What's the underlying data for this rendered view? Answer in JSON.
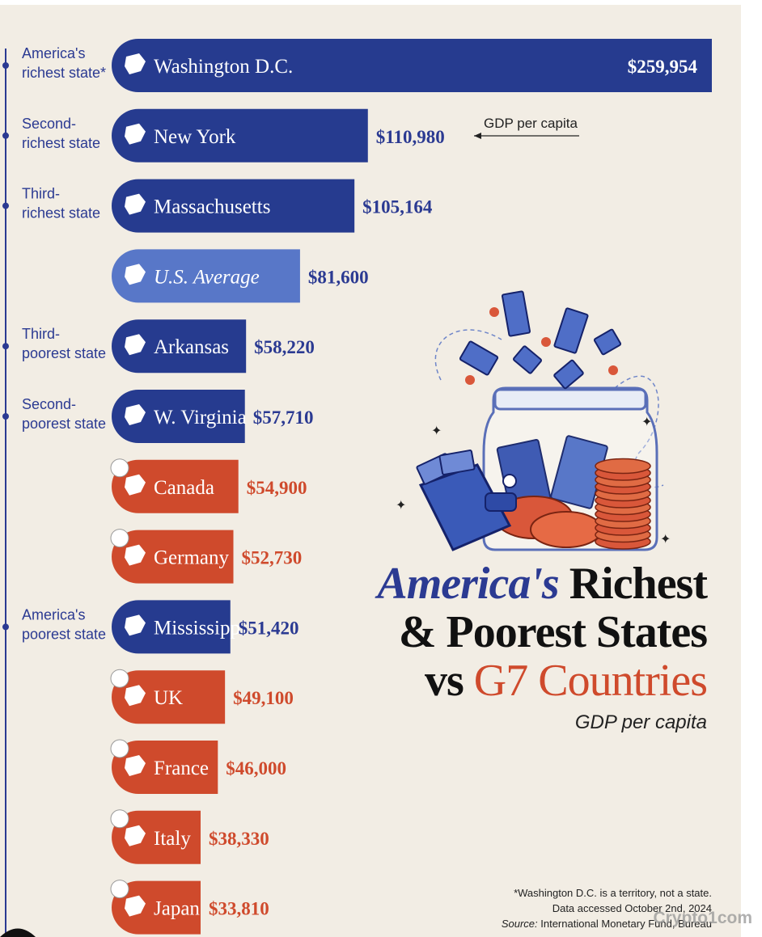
{
  "chart_data": {
    "type": "bar",
    "orientation": "horizontal",
    "title": "America's Richest & Poorest States vs G7 Countries",
    "title_parts": {
      "accent": "America's",
      "line1_rest": "Richest",
      "line2": "& Poorest States",
      "line3_prefix": "vs",
      "line3_accent": "G7 Countries"
    },
    "subtitle": "GDP per capita",
    "annotation": "GDP per capita",
    "unit": "USD",
    "xlim": [
      0,
      260000
    ],
    "bars": [
      {
        "label": "Washington D.C.",
        "value": 259954,
        "value_label": "$259,954",
        "group": "state",
        "side_label": "America's richest state*",
        "side_label_lines": [
          "America's",
          "richest state*"
        ]
      },
      {
        "label": "New York",
        "value": 110980,
        "value_label": "$110,980",
        "group": "state",
        "side_label": "Second-richest state",
        "side_label_lines": [
          "Second-",
          "richest state"
        ]
      },
      {
        "label": "Massachusetts",
        "value": 105164,
        "value_label": "$105,164",
        "group": "state",
        "side_label": "Third-richest state",
        "side_label_lines": [
          "Third-",
          "richest state"
        ]
      },
      {
        "label": "U.S. Average",
        "value": 81600,
        "value_label": "$81,600",
        "group": "average",
        "side_label": "",
        "side_label_lines": []
      },
      {
        "label": "Arkansas",
        "value": 58220,
        "value_label": "$58,220",
        "group": "state",
        "side_label": "Third-poorest state",
        "side_label_lines": [
          "Third-",
          "poorest state"
        ]
      },
      {
        "label": "W. Virginia",
        "value": 57710,
        "value_label": "$57,710",
        "group": "state",
        "side_label": "Second-poorest state",
        "side_label_lines": [
          "Second-",
          "poorest state"
        ]
      },
      {
        "label": "Canada",
        "value": 54900,
        "value_label": "$54,900",
        "group": "g7",
        "side_label": "",
        "side_label_lines": []
      },
      {
        "label": "Germany",
        "value": 52730,
        "value_label": "$52,730",
        "group": "g7",
        "side_label": "",
        "side_label_lines": []
      },
      {
        "label": "Mississippi",
        "value": 51420,
        "value_label": "$51,420",
        "group": "state",
        "side_label": "America's poorest state",
        "side_label_lines": [
          "America's",
          "poorest state"
        ]
      },
      {
        "label": "UK",
        "value": 49100,
        "value_label": "$49,100",
        "group": "g7",
        "side_label": "",
        "side_label_lines": []
      },
      {
        "label": "France",
        "value": 46000,
        "value_label": "$46,000",
        "group": "g7",
        "side_label": "",
        "side_label_lines": []
      },
      {
        "label": "Italy",
        "value": 38330,
        "value_label": "$38,330",
        "group": "g7",
        "side_label": "",
        "side_label_lines": []
      },
      {
        "label": "Japan",
        "value": 33810,
        "value_label": "$33,810",
        "group": "g7",
        "side_label": "",
        "side_label_lines": []
      }
    ],
    "colors": {
      "state": "#263b8f",
      "average": "#5877c8",
      "g7": "#cf4a2c",
      "text_blue": "#2b3a92",
      "text_orange": "#cf4a2c"
    },
    "footnotes": [
      "*Washington D.C. is a territory, not a state.",
      "Data accessed October 2nd, 2024",
      "International Monetary Fund, Bureau"
    ],
    "source_label": "Source:"
  },
  "watermark": "Crypto1com"
}
